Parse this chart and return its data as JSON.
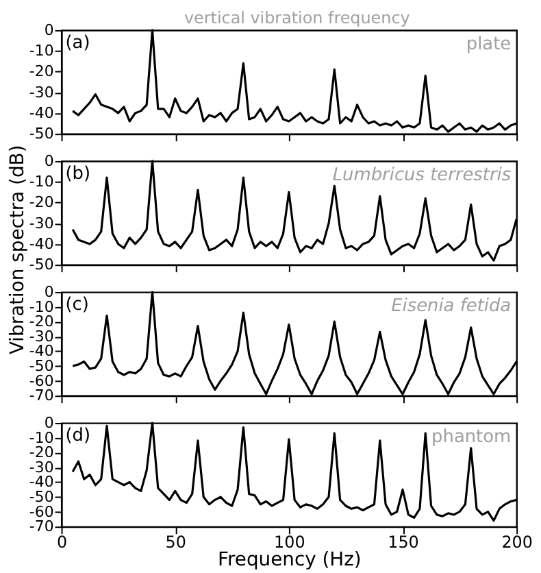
{
  "chart_data": [
    {
      "type": "line",
      "xlim": [
        0,
        200
      ],
      "xticks": [
        0,
        50,
        100,
        150,
        200
      ],
      "ylim": [
        -50,
        0
      ],
      "yticks": [
        -50,
        -40,
        -30,
        -20,
        -10,
        0
      ],
      "tick_labels": "y",
      "line_style": "solid",
      "annotations": [
        "(a)",
        "plate",
        "vertical vibration frequency"
      ],
      "x": [
        5,
        7.5,
        10,
        12.5,
        15,
        17.5,
        20,
        22.5,
        25,
        27.5,
        30,
        32.5,
        35,
        37.5,
        40,
        42.5,
        45,
        47.5,
        50,
        52.5,
        55,
        57.5,
        60,
        62.5,
        65,
        67.5,
        70,
        72.5,
        75,
        77.5,
        80,
        82.5,
        85,
        87.5,
        90,
        92.5,
        95,
        97.5,
        100,
        102.5,
        105,
        107.5,
        110,
        112.5,
        115,
        117.5,
        120,
        122.5,
        125,
        127.5,
        130,
        132.5,
        135,
        137.5,
        140,
        142.5,
        145,
        147.5,
        150,
        152.5,
        155,
        157.5,
        160,
        162.5,
        165,
        167.5,
        170,
        172.5,
        175,
        177.5,
        180,
        182.5,
        185,
        187.5,
        190,
        192.5,
        195,
        197.5,
        200
      ],
      "series": [
        {
          "color": "#000000",
          "values": [
            -39,
            -41,
            -38,
            -35,
            -31,
            -36,
            -37,
            -38,
            -40,
            -37,
            -44,
            -40,
            -39,
            -36,
            0,
            -38,
            -38,
            -42,
            -33,
            -39,
            -40,
            -37,
            -33,
            -44,
            -41,
            -42,
            -40,
            -44,
            -40,
            -38,
            -16,
            -43,
            -42,
            -38,
            -44,
            -41,
            -37,
            -43,
            -44,
            -42,
            -40,
            -44,
            -42,
            -44,
            -45,
            -43,
            -19,
            -45,
            -42,
            -44,
            -36,
            -42,
            -45,
            -44,
            -46,
            -45,
            -46,
            -44,
            -47,
            -46,
            -47,
            -45,
            -22,
            -47,
            -48,
            -46,
            -49,
            -47,
            -45,
            -48,
            -47,
            -49,
            -46,
            -48,
            -47,
            -45,
            -48,
            -46,
            -45
          ]
        }
      ]
    },
    {
      "type": "line",
      "xlim": [
        0,
        200
      ],
      "xticks": [
        0,
        50,
        100,
        150,
        200
      ],
      "ylim": [
        -50,
        0
      ],
      "yticks": [
        -50,
        -40,
        -30,
        -20,
        -10,
        0
      ],
      "tick_labels": "y",
      "line_style": "solid",
      "ylabel": "Vibration spectra (dB)",
      "annotations": [
        "(b)",
        "Lumbricus terrestris"
      ],
      "x": [
        5,
        7.5,
        10,
        12.5,
        15,
        17.5,
        20,
        22.5,
        25,
        27.5,
        30,
        32.5,
        35,
        37.5,
        40,
        42.5,
        45,
        47.5,
        50,
        52.5,
        55,
        57.5,
        60,
        62.5,
        65,
        67.5,
        70,
        72.5,
        75,
        77.5,
        80,
        82.5,
        85,
        87.5,
        90,
        92.5,
        95,
        97.5,
        100,
        102.5,
        105,
        107.5,
        110,
        112.5,
        115,
        117.5,
        120,
        122.5,
        125,
        127.5,
        130,
        132.5,
        135,
        137.5,
        140,
        142.5,
        145,
        147.5,
        150,
        152.5,
        155,
        157.5,
        160,
        162.5,
        165,
        167.5,
        170,
        172.5,
        175,
        177.5,
        180,
        182.5,
        185,
        187.5,
        190,
        192.5,
        195,
        197.5,
        200
      ],
      "series": [
        {
          "color": "#000000",
          "values": [
            -33,
            -38,
            -39,
            -40,
            -38,
            -34,
            -8,
            -35,
            -40,
            -42,
            -37,
            -40,
            -37,
            -33,
            0,
            -34,
            -40,
            -41,
            -39,
            -42,
            -38,
            -34,
            -14,
            -36,
            -43,
            -42,
            -40,
            -38,
            -41,
            -33,
            -8,
            -34,
            -42,
            -39,
            -41,
            -39,
            -42,
            -35,
            -15,
            -37,
            -44,
            -41,
            -42,
            -38,
            -40,
            -30,
            -12,
            -33,
            -42,
            -41,
            -43,
            -40,
            -39,
            -36,
            -17,
            -38,
            -45,
            -43,
            -41,
            -40,
            -42,
            -35,
            -18,
            -36,
            -44,
            -42,
            -40,
            -43,
            -41,
            -38,
            -21,
            -40,
            -46,
            -44,
            -48,
            -41,
            -40,
            -38,
            -28
          ]
        }
      ]
    },
    {
      "type": "line",
      "xlim": [
        0,
        200
      ],
      "xticks": [
        0,
        50,
        100,
        150,
        200
      ],
      "ylim": [
        -70,
        0
      ],
      "yticks": [
        -70,
        -60,
        -50,
        -40,
        -30,
        -20,
        -10,
        0
      ],
      "tick_labels": "y",
      "line_style": "solid",
      "annotations": [
        "(c)",
        "Eisenia fetida"
      ],
      "x": [
        5,
        7.5,
        10,
        12.5,
        15,
        17.5,
        20,
        22.5,
        25,
        27.5,
        30,
        32.5,
        35,
        37.5,
        40,
        42.5,
        45,
        47.5,
        50,
        52.5,
        55,
        57.5,
        60,
        62.5,
        65,
        67.5,
        70,
        72.5,
        75,
        77.5,
        80,
        82.5,
        85,
        87.5,
        90,
        92.5,
        95,
        97.5,
        100,
        102.5,
        105,
        107.5,
        110,
        112.5,
        115,
        117.5,
        120,
        122.5,
        125,
        127.5,
        130,
        132.5,
        135,
        137.5,
        140,
        142.5,
        145,
        147.5,
        150,
        152.5,
        155,
        157.5,
        160,
        162.5,
        165,
        167.5,
        170,
        172.5,
        175,
        177.5,
        180,
        182.5,
        185,
        187.5,
        190,
        192.5,
        195,
        197.5,
        200
      ],
      "series": [
        {
          "color": "#000000",
          "values": [
            -50,
            -49,
            -47,
            -52,
            -51,
            -45,
            -16,
            -47,
            -54,
            -56,
            -54,
            -55,
            -52,
            -45,
            0,
            -48,
            -56,
            -57,
            -55,
            -57,
            -50,
            -44,
            -23,
            -47,
            -59,
            -66,
            -60,
            -55,
            -49,
            -40,
            -14,
            -42,
            -55,
            -62,
            -69,
            -60,
            -52,
            -42,
            -22,
            -45,
            -56,
            -62,
            -69,
            -60,
            -53,
            -43,
            -20,
            -44,
            -56,
            -61,
            -69,
            -62,
            -55,
            -46,
            -27,
            -46,
            -57,
            -63,
            -69,
            -61,
            -54,
            -42,
            -19,
            -43,
            -56,
            -62,
            -69,
            -61,
            -55,
            -44,
            -24,
            -45,
            -57,
            -63,
            -69,
            -62,
            -58,
            -53,
            -47
          ]
        }
      ]
    },
    {
      "type": "line",
      "xlim": [
        0,
        200
      ],
      "xticks": [
        0,
        50,
        100,
        150,
        200
      ],
      "ylim": [
        -70,
        0
      ],
      "yticks": [
        -70,
        -60,
        -50,
        -40,
        -30,
        -20,
        -10,
        0
      ],
      "line_style": "solid",
      "xlabel": "Frequency (Hz)",
      "annotations": [
        "(d)",
        "phantom"
      ],
      "x": [
        5,
        7.5,
        10,
        12.5,
        15,
        17.5,
        20,
        22.5,
        25,
        27.5,
        30,
        32.5,
        35,
        37.5,
        40,
        42.5,
        45,
        47.5,
        50,
        52.5,
        55,
        57.5,
        60,
        62.5,
        65,
        67.5,
        70,
        72.5,
        75,
        77.5,
        80,
        82.5,
        85,
        87.5,
        90,
        92.5,
        95,
        97.5,
        100,
        102.5,
        105,
        107.5,
        110,
        112.5,
        115,
        117.5,
        120,
        122.5,
        125,
        127.5,
        130,
        132.5,
        135,
        137.5,
        140,
        142.5,
        145,
        147.5,
        150,
        152.5,
        155,
        157.5,
        160,
        162.5,
        165,
        167.5,
        170,
        172.5,
        175,
        177.5,
        180,
        182.5,
        185,
        187.5,
        190,
        192.5,
        195,
        197.5,
        200
      ],
      "series": [
        {
          "color": "#000000",
          "values": [
            -33,
            -26,
            -38,
            -35,
            -42,
            -38,
            -2,
            -38,
            -40,
            -42,
            -40,
            -44,
            -46,
            -32,
            0,
            -44,
            -48,
            -52,
            -46,
            -52,
            -54,
            -48,
            -12,
            -50,
            -55,
            -52,
            -50,
            -54,
            -56,
            -45,
            -3,
            -48,
            -49,
            -55,
            -53,
            -56,
            -54,
            -52,
            -11,
            -52,
            -57,
            -55,
            -56,
            -58,
            -55,
            -50,
            -7,
            -52,
            -56,
            -58,
            -57,
            -59,
            -57,
            -55,
            -12,
            -55,
            -62,
            -60,
            -45,
            -62,
            -64,
            -58,
            -7,
            -56,
            -62,
            -63,
            -61,
            -62,
            -60,
            -55,
            -17,
            -58,
            -62,
            -60,
            -66,
            -58,
            -55,
            -53,
            -52
          ]
        }
      ]
    }
  ]
}
